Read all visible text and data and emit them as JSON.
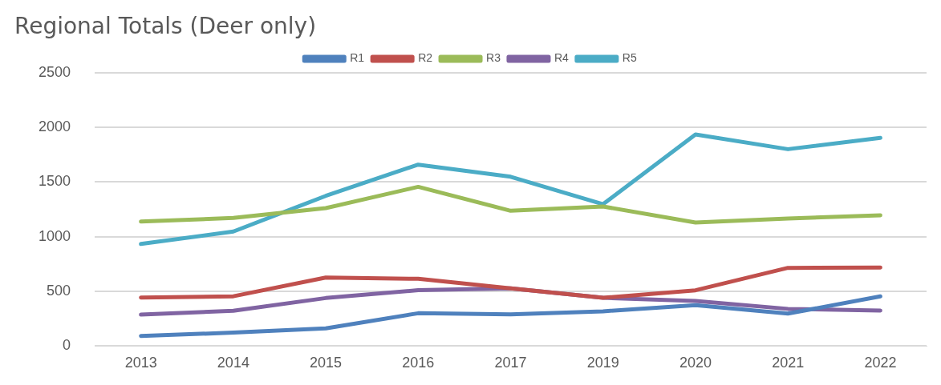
{
  "chart_data": {
    "type": "line",
    "title": "Regional Totals (Deer only)",
    "categories": [
      "2013",
      "2014",
      "2015",
      "2016",
      "2017",
      "2019",
      "2020",
      "2021",
      "2022"
    ],
    "series": [
      {
        "name": "R1",
        "color": "#4f81bd",
        "values": [
          91,
          122,
          160,
          299,
          289,
          317,
          373,
          296,
          453
        ]
      },
      {
        "name": "R2",
        "color": "#c0504d",
        "values": [
          442,
          454,
          625,
          614,
          527,
          440,
          509,
          714,
          716
        ]
      },
      {
        "name": "R3",
        "color": "#9bbb59",
        "values": [
          1137,
          1170,
          1260,
          1455,
          1236,
          1275,
          1128,
          1165,
          1195
        ]
      },
      {
        "name": "R4",
        "color": "#8064a2",
        "values": [
          286,
          322,
          438,
          510,
          527,
          440,
          412,
          339,
          324
        ]
      },
      {
        "name": "R5",
        "color": "#4bacc6",
        "values": [
          932,
          1046,
          1372,
          1658,
          1547,
          1296,
          1933,
          1799,
          1903
        ]
      }
    ],
    "ylim": [
      0,
      2500
    ],
    "yticks": [
      0,
      500,
      1000,
      1500,
      2000,
      2500
    ],
    "grid": "y",
    "legend": "top",
    "marker": "none",
    "line_style": "solid"
  }
}
